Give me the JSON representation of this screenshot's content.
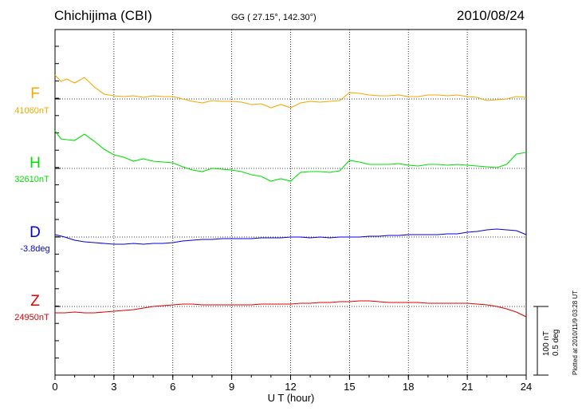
{
  "header": {
    "station": "Chichijima (CBI)",
    "coords": "GG ( 27.15°, 142.30°)",
    "date": "2010/08/24"
  },
  "chart_data": {
    "type": "line",
    "xlabel": "U T (hour)",
    "xlim": [
      0,
      24
    ],
    "xticks": [
      0,
      3,
      6,
      9,
      12,
      15,
      18,
      21,
      24
    ],
    "grid": true,
    "scale_label": "100 nT",
    "scale_label2": "0.5 deg",
    "plotted_note": "Plotted at 2010/11/9 03:28 UT",
    "series": [
      {
        "name": "F",
        "baseline_label": "41060nT",
        "color": "#f5a800",
        "x": [
          0,
          0.3,
          0.6,
          1,
          1.5,
          2,
          2.5,
          3,
          3.5,
          4,
          4.5,
          5,
          5.5,
          6,
          6.5,
          7,
          7.5,
          8,
          8.5,
          9,
          9.5,
          10,
          10.5,
          11,
          11.5,
          12,
          12.5,
          13,
          13.5,
          14,
          14.5,
          15,
          15.5,
          16,
          16.5,
          17,
          17.5,
          18,
          18.5,
          19,
          19.5,
          20,
          20.5,
          21,
          21.5,
          22,
          22.5,
          23,
          23.5,
          24
        ],
        "y": [
          30,
          22,
          25,
          20,
          27,
          15,
          6,
          4,
          3,
          4,
          2,
          4,
          3,
          3,
          0,
          -3,
          -5,
          -2,
          -3,
          -3,
          -4,
          -7,
          -6,
          -11,
          -7,
          -11,
          -5,
          -3,
          -4,
          -3,
          -2,
          8,
          7,
          5,
          4,
          4,
          5,
          3,
          3,
          5,
          5,
          4,
          5,
          3,
          2,
          -2,
          -1,
          0,
          3,
          2
        ]
      },
      {
        "name": "H",
        "baseline_label": "32610nT",
        "color": "#00e000",
        "x": [
          0,
          0.3,
          0.6,
          1,
          1.5,
          2,
          2.5,
          3,
          3.5,
          4,
          4.5,
          5,
          5.5,
          6,
          6.5,
          7,
          7.5,
          8,
          8.5,
          9,
          9.5,
          10,
          10.5,
          11,
          11.5,
          12,
          12.5,
          13,
          13.5,
          14,
          14.5,
          15,
          15.5,
          16,
          16.5,
          17,
          17.5,
          18,
          18.5,
          19,
          19.5,
          20,
          20.5,
          21,
          21.5,
          22,
          22.5,
          23,
          23.5,
          24
        ],
        "y": [
          47,
          37,
          36,
          35,
          43,
          34,
          24,
          17,
          14,
          9,
          12,
          9,
          8,
          7,
          2,
          -2,
          -4,
          0,
          -1,
          -2,
          -4,
          -8,
          -10,
          -16,
          -13,
          -16,
          -5,
          -4,
          -4,
          -5,
          -3,
          10,
          8,
          5,
          5,
          5,
          6,
          4,
          3,
          5,
          5,
          4,
          5,
          4,
          3,
          2,
          1,
          5,
          18,
          20
        ]
      },
      {
        "name": "D",
        "baseline_label": "-3.8deg",
        "color": "#0000e0",
        "x": [
          0,
          0.5,
          1,
          1.5,
          2,
          2.5,
          3,
          3.5,
          4,
          4.5,
          5,
          5.5,
          6,
          6.5,
          7,
          7.5,
          8,
          8.5,
          9,
          9.5,
          10,
          10.5,
          11,
          11.5,
          12,
          12.5,
          13,
          13.5,
          14,
          14.5,
          15,
          15.5,
          16,
          16.5,
          17,
          17.5,
          18,
          18.5,
          19,
          19.5,
          20,
          20.5,
          21,
          21.5,
          22,
          22.5,
          23,
          23.5,
          24
        ],
        "y": [
          3,
          0,
          -4,
          -6,
          -7,
          -8,
          -9,
          -9,
          -8,
          -9,
          -8,
          -8,
          -7,
          -5,
          -4,
          -3,
          -3,
          -2,
          -2,
          -2,
          -2,
          -1,
          -1,
          -1,
          0,
          0,
          -1,
          0,
          -1,
          0,
          0,
          0,
          1,
          1,
          2,
          2,
          3,
          3,
          3,
          3,
          4,
          4,
          6,
          7,
          9,
          10,
          9,
          8,
          3
        ]
      },
      {
        "name": "Z",
        "baseline_label": "24950nT",
        "color": "#e00000",
        "x": [
          0,
          0.5,
          1,
          1.5,
          2,
          2.5,
          3,
          3.5,
          4,
          4.5,
          5,
          5.5,
          6,
          6.5,
          7,
          7.5,
          8,
          8.5,
          9,
          9.5,
          10,
          10.5,
          11,
          11.5,
          12,
          12.5,
          13,
          13.5,
          14,
          14.5,
          15,
          15.5,
          16,
          16.5,
          17,
          17.5,
          18,
          18.5,
          19,
          19.5,
          20,
          20.5,
          21,
          21.5,
          22,
          22.5,
          23,
          23.5,
          24
        ],
        "y": [
          -8,
          -8,
          -7,
          -8,
          -8,
          -7,
          -6,
          -5,
          -4,
          -2,
          0,
          1,
          2,
          3,
          3,
          2,
          2,
          2,
          2,
          2,
          2,
          3,
          3,
          3,
          3,
          4,
          4,
          5,
          5,
          6,
          6,
          7,
          7,
          6,
          5,
          5,
          5,
          5,
          4,
          4,
          4,
          4,
          4,
          3,
          2,
          0,
          -3,
          -7,
          -13
        ]
      }
    ]
  }
}
